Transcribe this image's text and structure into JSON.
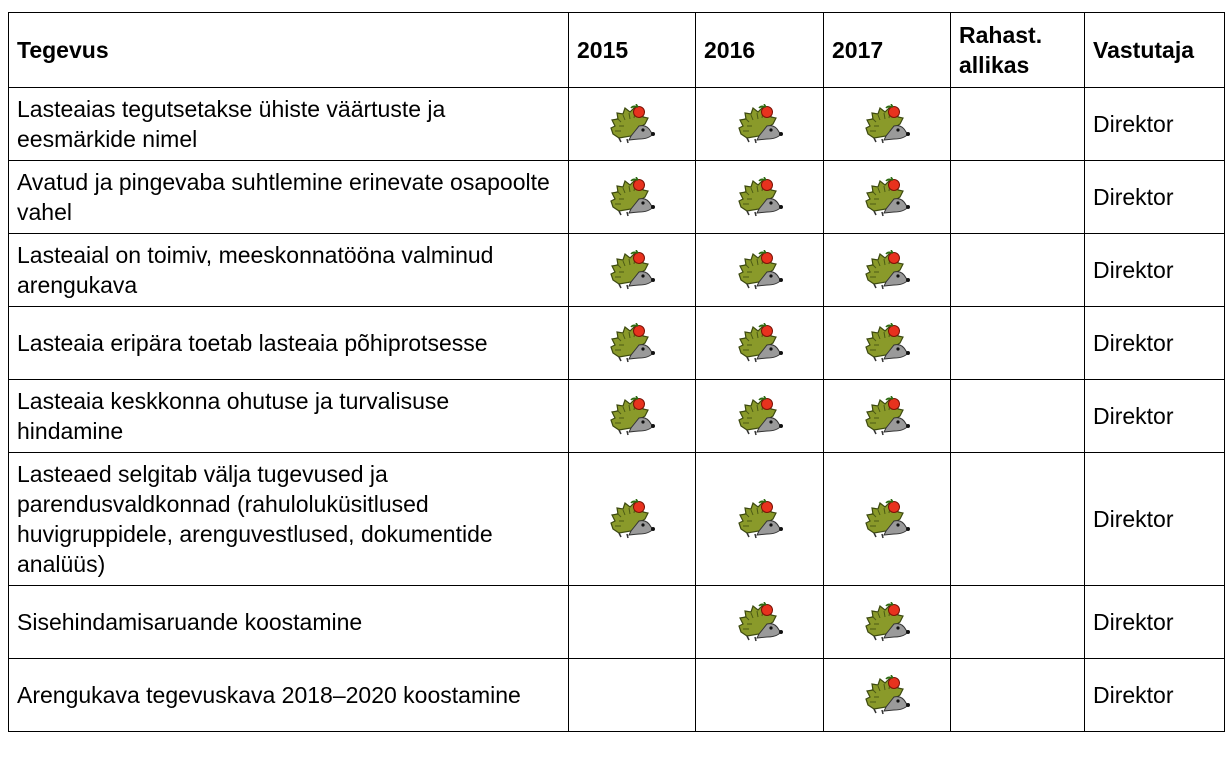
{
  "table": {
    "header": [
      "Tegevus",
      "2015",
      "2016",
      "2017",
      "Rahast. allikas",
      "Vastutaja"
    ],
    "rows": [
      {
        "activity": "Lasteaias tegutsetakse ühiste väärtuste ja eesmärkide nimel",
        "years": [
          true,
          true,
          true
        ],
        "responsible": "Direktor"
      },
      {
        "activity": "Avatud ja pingevaba suhtlemine erinevate osapoolte vahel",
        "years": [
          true,
          true,
          true
        ],
        "responsible": "Direktor"
      },
      {
        "activity": "Lasteaial on toimiv, meeskonnatööna valminud arengukava",
        "years": [
          true,
          true,
          true
        ],
        "responsible": "Direktor"
      },
      {
        "activity": "Lasteaia eripära toetab lasteaia põhiprotsesse",
        "years": [
          true,
          true,
          true
        ],
        "responsible": "Direktor"
      },
      {
        "activity": "Lasteaia keskkonna ohutuse ja turvalisuse hindamine",
        "years": [
          true,
          true,
          true
        ],
        "responsible": "Direktor"
      },
      {
        "activity": "Lasteaed selgitab välja tugevused ja parendusvaldkonnad (rahuloluküsitlused huvigruppidele, arenguvestlused, dokumentide analüüs)",
        "years": [
          true,
          true,
          true
        ],
        "responsible": "Direktor"
      },
      {
        "activity": "Sisehindamisaruande koostamine",
        "years": [
          false,
          true,
          true
        ],
        "responsible": "Direktor"
      },
      {
        "activity": "Arengukava tegevuskava 2018–2020 koostamine",
        "years": [
          false,
          false,
          true
        ],
        "responsible": "Direktor"
      }
    ]
  }
}
